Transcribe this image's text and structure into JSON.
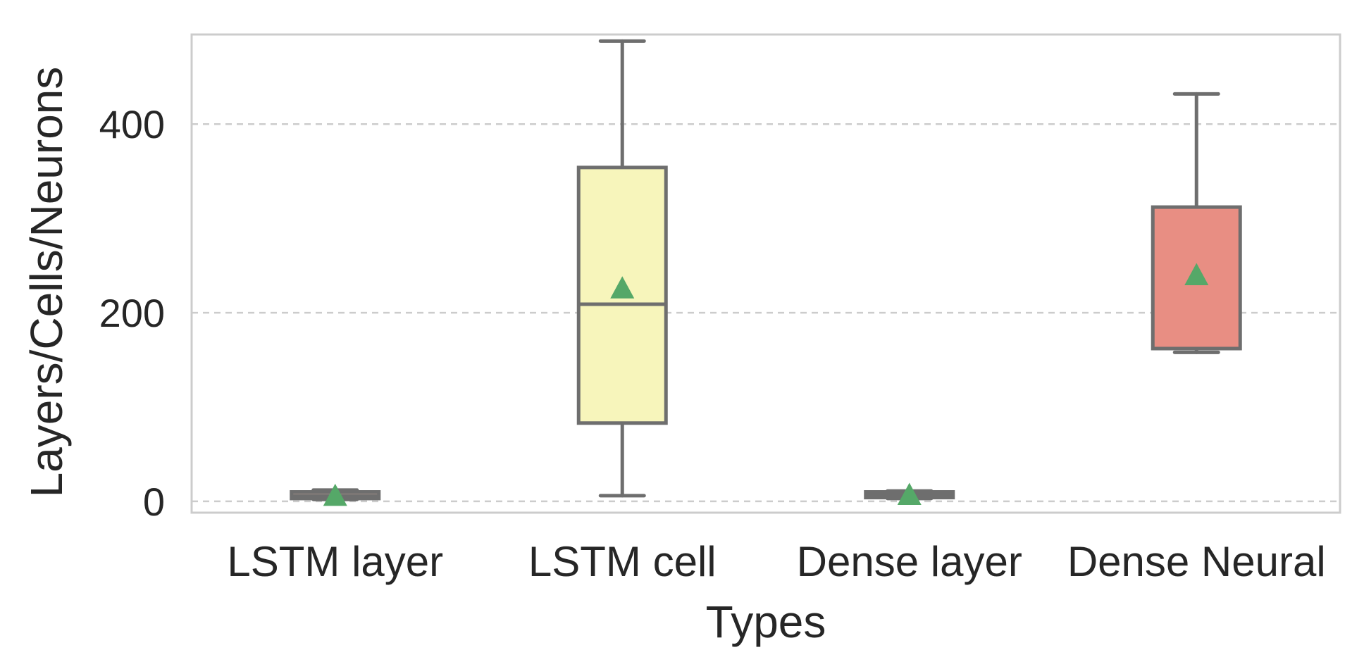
{
  "chart_data": {
    "type": "box",
    "xlabel": "Types",
    "ylabel": "Layers/Cells/Neurons",
    "ylim": [
      -12,
      495
    ],
    "yticks": [
      0,
      200,
      400
    ],
    "grid": "horizontal-dashed",
    "legend": "none",
    "categories": [
      "LSTM layer",
      "LSTM cell",
      "Dense layer",
      "Dense Neural"
    ],
    "boxes": [
      {
        "category": "LSTM layer",
        "whisker_low": 2,
        "q1": 3,
        "median": 6,
        "q3": 10,
        "whisker_high": 12,
        "mean": 6,
        "color": "#fac8b4"
      },
      {
        "category": "LSTM cell",
        "whisker_low": 6,
        "q1": 83,
        "median": 209,
        "q3": 354,
        "whisker_high": 488,
        "mean": 226,
        "color": "#f7f5bb"
      },
      {
        "category": "Dense layer",
        "whisker_low": 3,
        "q1": 4,
        "median": 7,
        "q3": 10,
        "whisker_high": 11,
        "mean": 7,
        "color": "#bde0bd"
      },
      {
        "category": "Dense Neural",
        "whisker_low": 158,
        "q1": 162,
        "median": 162,
        "q3": 312,
        "whisker_high": 432,
        "mean": 240,
        "color": "#e88e83"
      }
    ],
    "styles": {
      "line_color": "#6e6e6e",
      "mean_marker_color": "#55a868",
      "grid_color": "#cccccc",
      "frame_color": "#cccccc"
    }
  }
}
